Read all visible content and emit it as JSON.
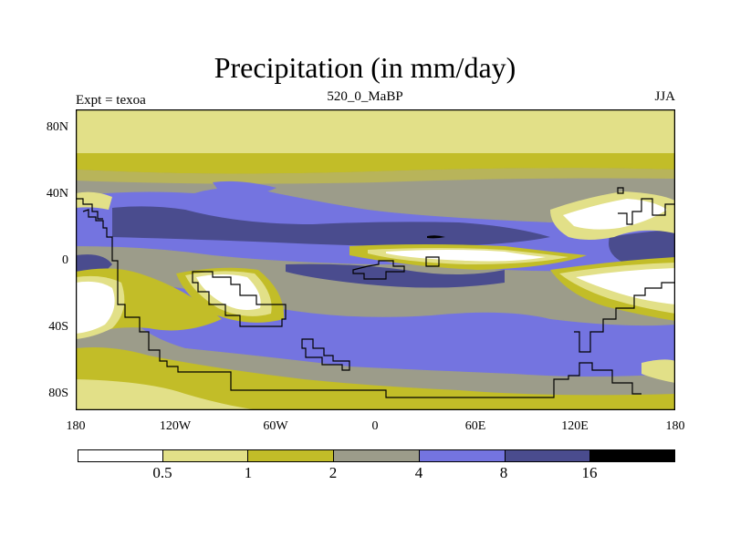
{
  "title": "Precipitation (in mm/day)",
  "subtitle_left": "Expt = texoa",
  "subtitle_center": "520_0_MaBP",
  "subtitle_right": "JJA",
  "lat_ticks": [
    "80N",
    "40N",
    "0",
    "40S",
    "80S"
  ],
  "lon_ticks": [
    "180",
    "120W",
    "60W",
    "0",
    "60E",
    "120E",
    "180"
  ],
  "colorbar": {
    "labels": [
      "0.5",
      "1",
      "2",
      "4",
      "8",
      "16"
    ],
    "colors": [
      "#ffffff",
      "#e2e088",
      "#c2bd28",
      "#9c9c8a",
      "#7474e0",
      "#4a4c8e",
      "#000000"
    ]
  }
}
